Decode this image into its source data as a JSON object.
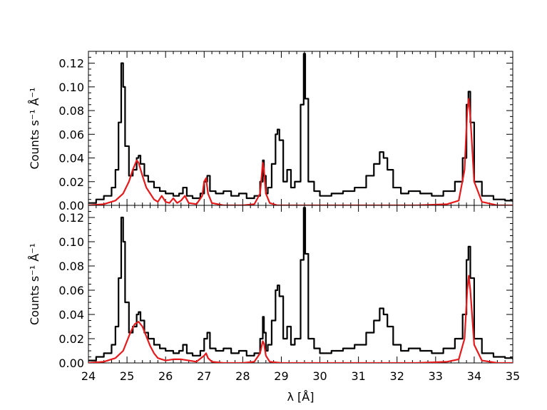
{
  "chart_data": [
    {
      "type": "line",
      "panel": "top",
      "xlim": [
        24,
        35
      ],
      "ylim": [
        0.0,
        0.13
      ],
      "xlabel": "",
      "ylabel": "Counts s⁻¹ Å⁻¹",
      "xticks": [
        "24",
        "25",
        "26",
        "27",
        "28",
        "29",
        "30",
        "31",
        "32",
        "33",
        "34",
        "35"
      ],
      "yticks": [
        "0.00",
        "0.02",
        "0.04",
        "0.06",
        "0.08",
        "0.10",
        "0.12"
      ],
      "grid": false,
      "series": [
        {
          "color": "#000000",
          "style": "step",
          "x": [
            24.0,
            24.2,
            24.4,
            24.6,
            24.7,
            24.78,
            24.85,
            24.9,
            24.95,
            25.05,
            25.15,
            25.25,
            25.3,
            25.35,
            25.45,
            25.55,
            25.7,
            25.85,
            26.0,
            26.2,
            26.35,
            26.45,
            26.55,
            26.7,
            26.9,
            27.0,
            27.08,
            27.15,
            27.3,
            27.5,
            27.7,
            27.9,
            28.1,
            28.3,
            28.45,
            28.52,
            28.55,
            28.6,
            28.65,
            28.75,
            28.85,
            28.9,
            28.95,
            29.05,
            29.15,
            29.25,
            29.35,
            29.5,
            29.58,
            29.62,
            29.7,
            29.85,
            30.0,
            30.3,
            30.6,
            30.9,
            31.2,
            31.4,
            31.55,
            31.65,
            31.75,
            31.9,
            32.1,
            32.3,
            32.6,
            32.9,
            33.2,
            33.5,
            33.7,
            33.8,
            33.85,
            33.9,
            34.0,
            34.2,
            34.5,
            34.8,
            35.0
          ],
          "y": [
            0.002,
            0.005,
            0.008,
            0.015,
            0.03,
            0.07,
            0.12,
            0.1,
            0.05,
            0.025,
            0.03,
            0.04,
            0.042,
            0.035,
            0.025,
            0.02,
            0.015,
            0.012,
            0.01,
            0.008,
            0.01,
            0.015,
            0.008,
            0.006,
            0.01,
            0.02,
            0.025,
            0.012,
            0.01,
            0.012,
            0.008,
            0.01,
            0.006,
            0.008,
            0.02,
            0.038,
            0.025,
            0.01,
            0.015,
            0.035,
            0.06,
            0.064,
            0.055,
            0.02,
            0.03,
            0.015,
            0.02,
            0.085,
            0.128,
            0.09,
            0.02,
            0.012,
            0.008,
            0.01,
            0.012,
            0.015,
            0.025,
            0.035,
            0.045,
            0.04,
            0.03,
            0.015,
            0.01,
            0.012,
            0.01,
            0.008,
            0.012,
            0.02,
            0.04,
            0.085,
            0.096,
            0.07,
            0.02,
            0.008,
            0.005,
            0.004,
            0.003
          ]
        },
        {
          "color": "#e41a1c",
          "style": "line",
          "x": [
            24.0,
            24.4,
            24.7,
            24.9,
            25.05,
            25.15,
            25.25,
            25.3,
            25.4,
            25.5,
            25.6,
            25.7,
            25.8,
            25.9,
            26.0,
            26.1,
            26.2,
            26.3,
            26.4,
            26.5,
            26.6,
            26.8,
            26.95,
            27.0,
            27.05,
            27.1,
            27.2,
            27.5,
            28.0,
            28.3,
            28.45,
            28.52,
            28.55,
            28.6,
            28.7,
            28.9,
            29.5,
            30.5,
            31.5,
            32.5,
            33.3,
            33.6,
            33.75,
            33.82,
            33.86,
            33.9,
            34.0,
            34.2,
            34.6,
            35.0
          ],
          "y": [
            0.0,
            0.001,
            0.004,
            0.01,
            0.02,
            0.03,
            0.038,
            0.036,
            0.025,
            0.015,
            0.01,
            0.005,
            0.003,
            0.008,
            0.003,
            0.002,
            0.006,
            0.002,
            0.004,
            0.008,
            0.002,
            0.001,
            0.008,
            0.02,
            0.023,
            0.01,
            0.002,
            0.0,
            0.0,
            0.001,
            0.01,
            0.036,
            0.03,
            0.01,
            0.002,
            0.0,
            0.0,
            0.0,
            0.0,
            0.0,
            0.001,
            0.004,
            0.03,
            0.08,
            0.09,
            0.075,
            0.02,
            0.003,
            0.0,
            0.0
          ]
        }
      ]
    },
    {
      "type": "line",
      "panel": "bottom",
      "xlim": [
        24,
        35
      ],
      "ylim": [
        0.0,
        0.13
      ],
      "xlabel": "λ [Å]",
      "ylabel": "Counts s⁻¹ Å⁻¹",
      "xticks": [
        "24",
        "25",
        "26",
        "27",
        "28",
        "29",
        "30",
        "31",
        "32",
        "33",
        "34",
        "35"
      ],
      "yticks": [
        "0.00",
        "0.02",
        "0.04",
        "0.06",
        "0.08",
        "0.10",
        "0.12"
      ],
      "grid": false,
      "series": [
        {
          "color": "#000000",
          "style": "step",
          "x": [
            24.0,
            24.2,
            24.4,
            24.6,
            24.7,
            24.78,
            24.85,
            24.9,
            24.95,
            25.05,
            25.15,
            25.25,
            25.3,
            25.35,
            25.45,
            25.55,
            25.7,
            25.85,
            26.0,
            26.2,
            26.35,
            26.45,
            26.55,
            26.7,
            26.9,
            27.0,
            27.08,
            27.15,
            27.3,
            27.5,
            27.7,
            27.9,
            28.1,
            28.3,
            28.45,
            28.52,
            28.55,
            28.6,
            28.65,
            28.75,
            28.85,
            28.9,
            28.95,
            29.05,
            29.15,
            29.25,
            29.35,
            29.5,
            29.58,
            29.62,
            29.7,
            29.85,
            30.0,
            30.3,
            30.6,
            30.9,
            31.2,
            31.4,
            31.55,
            31.65,
            31.75,
            31.9,
            32.1,
            32.3,
            32.6,
            32.9,
            33.2,
            33.5,
            33.7,
            33.8,
            33.85,
            33.9,
            34.0,
            34.2,
            34.5,
            34.8,
            35.0
          ],
          "y": [
            0.002,
            0.005,
            0.008,
            0.015,
            0.03,
            0.07,
            0.12,
            0.1,
            0.05,
            0.025,
            0.03,
            0.04,
            0.042,
            0.035,
            0.025,
            0.02,
            0.015,
            0.012,
            0.01,
            0.008,
            0.01,
            0.015,
            0.008,
            0.006,
            0.01,
            0.02,
            0.025,
            0.012,
            0.01,
            0.012,
            0.008,
            0.01,
            0.006,
            0.008,
            0.02,
            0.038,
            0.025,
            0.01,
            0.015,
            0.035,
            0.06,
            0.064,
            0.055,
            0.02,
            0.03,
            0.015,
            0.02,
            0.085,
            0.128,
            0.09,
            0.02,
            0.012,
            0.008,
            0.01,
            0.012,
            0.015,
            0.025,
            0.035,
            0.045,
            0.04,
            0.03,
            0.015,
            0.01,
            0.012,
            0.01,
            0.008,
            0.012,
            0.02,
            0.04,
            0.085,
            0.096,
            0.07,
            0.02,
            0.008,
            0.005,
            0.004,
            0.003
          ]
        },
        {
          "color": "#e41a1c",
          "style": "line",
          "x": [
            24.0,
            24.4,
            24.7,
            24.9,
            25.0,
            25.1,
            25.2,
            25.3,
            25.4,
            25.5,
            25.6,
            25.7,
            25.8,
            25.9,
            26.0,
            26.2,
            26.4,
            26.6,
            26.8,
            27.0,
            27.05,
            27.1,
            27.2,
            27.5,
            28.0,
            28.3,
            28.45,
            28.52,
            28.55,
            28.6,
            28.7,
            29.0,
            29.5,
            30.5,
            31.5,
            32.5,
            33.3,
            33.6,
            33.75,
            33.82,
            33.86,
            33.9,
            34.0,
            34.2,
            34.6,
            35.0
          ],
          "y": [
            0.0,
            0.001,
            0.004,
            0.01,
            0.018,
            0.026,
            0.032,
            0.034,
            0.03,
            0.022,
            0.014,
            0.008,
            0.004,
            0.003,
            0.002,
            0.003,
            0.003,
            0.002,
            0.001,
            0.006,
            0.008,
            0.004,
            0.001,
            0.0,
            0.0,
            0.001,
            0.008,
            0.018,
            0.016,
            0.006,
            0.001,
            0.0,
            0.0,
            0.0,
            0.0,
            0.0,
            0.001,
            0.003,
            0.02,
            0.06,
            0.072,
            0.06,
            0.015,
            0.002,
            0.0,
            0.0
          ]
        }
      ]
    }
  ]
}
